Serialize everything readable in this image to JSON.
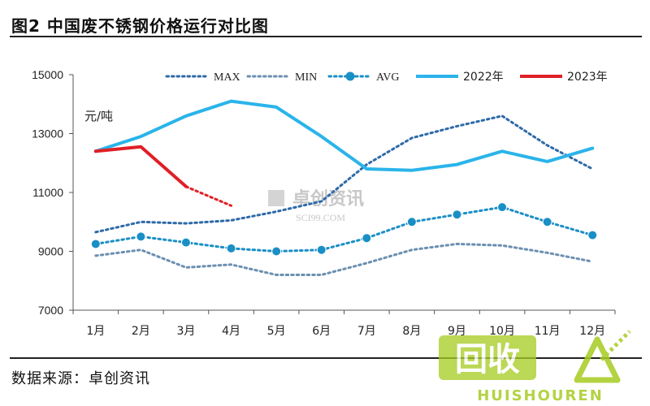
{
  "figure": {
    "title": "图2 中国废不锈钢价格运行对比图",
    "source": "数据来源：卓创资讯",
    "watermark_center": [
      "卓创资讯",
      "SCI99.COM"
    ],
    "watermark_corner": [
      "回收",
      "HUISHOUREN"
    ]
  },
  "chart_data": {
    "type": "line",
    "title": "图2 中国废不锈钢价格运行对比图",
    "ylabel": "元/吨",
    "xlabel": "",
    "ylim": [
      7000,
      15000
    ],
    "yticks": [
      7000,
      9000,
      11000,
      13000,
      15000
    ],
    "categories": [
      "1月",
      "2月",
      "3月",
      "4月",
      "5月",
      "6月",
      "7月",
      "8月",
      "9月",
      "10月",
      "11月",
      "12月"
    ],
    "legend_position": "top",
    "grid": false,
    "series": [
      {
        "name": "MAX",
        "style": "dotted",
        "color": "#2e6aa8",
        "values": [
          9650,
          10000,
          9950,
          10050,
          10350,
          10700,
          11950,
          12850,
          13250,
          13600,
          12600,
          11800
        ]
      },
      {
        "name": "MIN",
        "style": "dotted",
        "color": "#6b8fb0",
        "values": [
          8850,
          9050,
          8450,
          8550,
          8200,
          8200,
          8600,
          9050,
          9250,
          9200,
          8950,
          8650
        ]
      },
      {
        "name": "AVG",
        "style": "dotted-marker",
        "color": "#1a8fc6",
        "values": [
          9250,
          9500,
          9300,
          9100,
          9000,
          9050,
          9450,
          10000,
          10250,
          10500,
          10000,
          9550
        ]
      },
      {
        "name": "2022年",
        "style": "solid",
        "color": "#2ab4ea",
        "values": [
          12400,
          12900,
          13600,
          14100,
          13900,
          12900,
          11800,
          11750,
          11950,
          12400,
          12050,
          12500
        ]
      },
      {
        "name": "2023年",
        "style": "solid-then-dotted",
        "color": "#e01f26",
        "values": [
          12400,
          12550,
          11200,
          10550,
          null,
          null,
          null,
          null,
          null,
          null,
          null,
          null
        ]
      }
    ]
  }
}
